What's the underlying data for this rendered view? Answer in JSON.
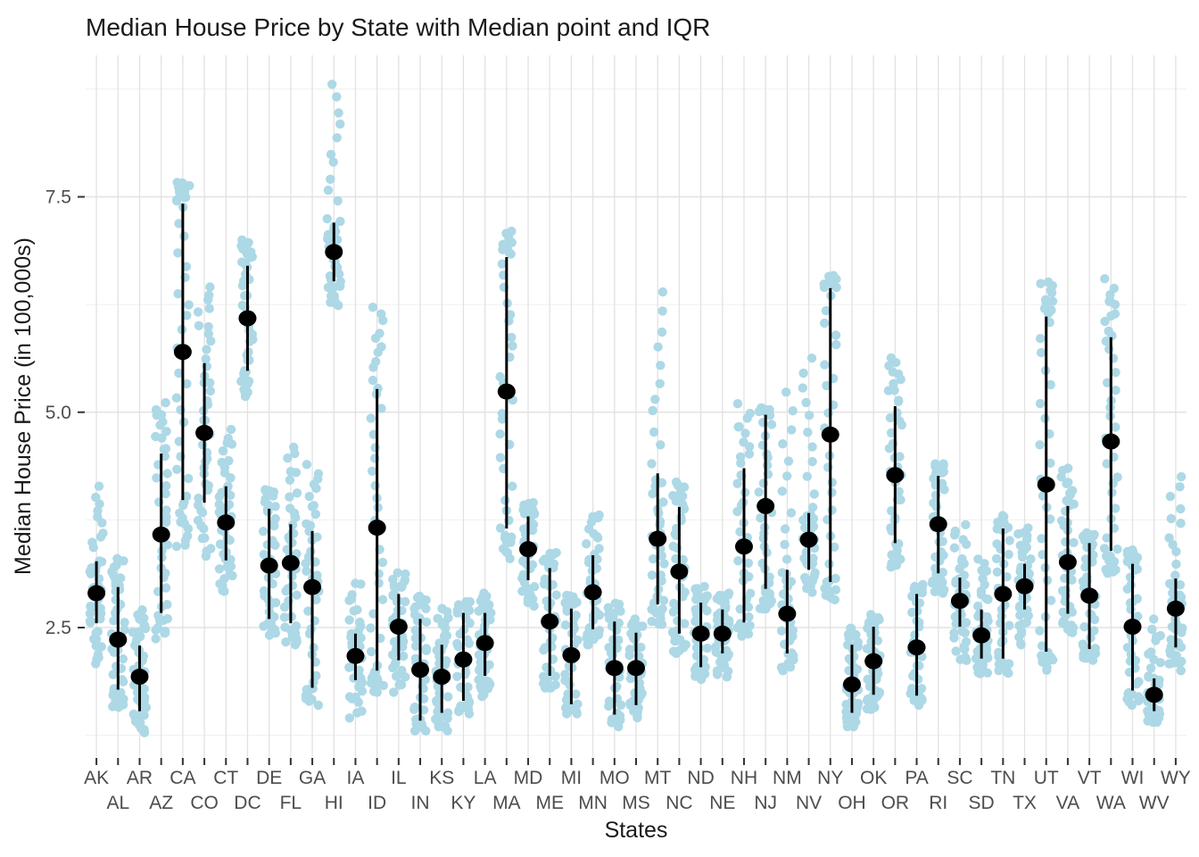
{
  "figure": {
    "title": "Median House Price by State with Median point and IQR",
    "x_label": "States",
    "y_label": "Median House Price (in 100,000s)"
  },
  "colors": {
    "point_fill": "#ADD8E6",
    "median_fill": "#000000",
    "iqr_stroke": "#000000",
    "grid_major": "#E2E2E2",
    "grid_minor": "#EFEFEF",
    "axis_tick": "#333333",
    "tick_label": "#4D4D4D",
    "title_text": "#1A1A1A",
    "background": "#FFFFFF"
  },
  "chart_data": {
    "type": "scatter",
    "subtype": "jittered points with median point and IQR bar per category",
    "title": "Median House Price by State with Median point and IQR",
    "xlabel": "States",
    "ylabel": "Median House Price (in 100,000s)",
    "legend": "none",
    "grid": "on",
    "ylim": [
      1.0,
      9.15
    ],
    "ytick_labels": [
      "2.5",
      "5.0",
      "7.5"
    ],
    "ytick_values": [
      2.5,
      5.0,
      7.5
    ],
    "minor_ytick_values": [
      1.25,
      3.75,
      6.25,
      8.75
    ],
    "x_categories": [
      "AK",
      "AL",
      "AR",
      "AZ",
      "CA",
      "CO",
      "CT",
      "DC",
      "DE",
      "FL",
      "GA",
      "HI",
      "IA",
      "ID",
      "IL",
      "IN",
      "KS",
      "KY",
      "LA",
      "MA",
      "MD",
      "ME",
      "MI",
      "MN",
      "MO",
      "MS",
      "MT",
      "NC",
      "ND",
      "NE",
      "NH",
      "NJ",
      "NM",
      "NV",
      "NY",
      "OH",
      "OK",
      "OR",
      "PA",
      "RI",
      "SC",
      "SD",
      "TN",
      "TX",
      "UT",
      "VA",
      "VT",
      "WA",
      "WI",
      "WV",
      "WY"
    ],
    "series": [
      {
        "state": "AK",
        "median": 2.9,
        "q1": 2.55,
        "q3": 3.27,
        "low": 2.05,
        "high": 4.15
      },
      {
        "state": "AL",
        "median": 2.36,
        "q1": 1.78,
        "q3": 2.97,
        "low": 1.55,
        "high": 3.3
      },
      {
        "state": "AR",
        "median": 1.93,
        "q1": 1.53,
        "q3": 2.29,
        "low": 1.28,
        "high": 2.75
      },
      {
        "state": "AZ",
        "median": 3.58,
        "q1": 2.67,
        "q3": 4.52,
        "low": 2.35,
        "high": 5.15
      },
      {
        "state": "CA",
        "median": 5.7,
        "q1": 3.98,
        "q3": 7.42,
        "low": 3.4,
        "high": 7.7
      },
      {
        "state": "CO",
        "median": 4.76,
        "q1": 3.95,
        "q3": 5.57,
        "low": 3.3,
        "high": 6.5
      },
      {
        "state": "CT",
        "median": 3.72,
        "q1": 3.28,
        "q3": 4.14,
        "low": 2.9,
        "high": 4.8
      },
      {
        "state": "DC",
        "median": 6.09,
        "q1": 5.48,
        "q3": 6.7,
        "low": 5.15,
        "high": 7.0
      },
      {
        "state": "DE",
        "median": 3.22,
        "q1": 2.6,
        "q3": 3.88,
        "low": 2.4,
        "high": 4.1
      },
      {
        "state": "FL",
        "median": 3.25,
        "q1": 2.55,
        "q3": 3.7,
        "low": 2.3,
        "high": 4.65
      },
      {
        "state": "GA",
        "median": 2.97,
        "q1": 1.8,
        "q3": 3.62,
        "low": 1.6,
        "high": 4.4
      },
      {
        "state": "HI",
        "median": 6.86,
        "q1": 6.52,
        "q3": 7.2,
        "low": 6.2,
        "high": 8.85
      },
      {
        "state": "IA",
        "median": 2.17,
        "q1": 1.89,
        "q3": 2.43,
        "low": 1.45,
        "high": 3.05
      },
      {
        "state": "ID",
        "median": 3.66,
        "q1": 2.0,
        "q3": 5.27,
        "low": 1.75,
        "high": 6.25
      },
      {
        "state": "IL",
        "median": 2.51,
        "q1": 2.12,
        "q3": 2.89,
        "low": 1.75,
        "high": 3.15
      },
      {
        "state": "IN",
        "median": 2.01,
        "q1": 1.42,
        "q3": 2.6,
        "low": 1.3,
        "high": 2.9
      },
      {
        "state": "KS",
        "median": 1.93,
        "q1": 1.51,
        "q3": 2.3,
        "low": 1.3,
        "high": 2.75
      },
      {
        "state": "KY",
        "median": 2.13,
        "q1": 1.65,
        "q3": 2.67,
        "low": 1.5,
        "high": 2.8
      },
      {
        "state": "LA",
        "median": 2.32,
        "q1": 1.94,
        "q3": 2.67,
        "low": 1.7,
        "high": 2.9
      },
      {
        "state": "MA",
        "median": 5.24,
        "q1": 3.65,
        "q3": 6.8,
        "low": 3.3,
        "high": 7.1
      },
      {
        "state": "MD",
        "median": 3.41,
        "q1": 3.05,
        "q3": 3.79,
        "low": 2.75,
        "high": 3.95
      },
      {
        "state": "ME",
        "median": 2.57,
        "q1": 1.94,
        "q3": 3.19,
        "low": 1.8,
        "high": 3.4
      },
      {
        "state": "MI",
        "median": 2.18,
        "q1": 1.61,
        "q3": 2.72,
        "low": 1.5,
        "high": 2.9
      },
      {
        "state": "MN",
        "median": 2.91,
        "q1": 2.48,
        "q3": 3.34,
        "low": 2.3,
        "high": 3.85
      },
      {
        "state": "MO",
        "median": 2.03,
        "q1": 1.49,
        "q3": 2.57,
        "low": 1.35,
        "high": 2.8
      },
      {
        "state": "MS",
        "median": 2.03,
        "q1": 1.6,
        "q3": 2.44,
        "low": 1.45,
        "high": 2.6
      },
      {
        "state": "MT",
        "median": 3.53,
        "q1": 2.77,
        "q3": 4.29,
        "low": 2.5,
        "high": 6.45
      },
      {
        "state": "NC",
        "median": 3.15,
        "q1": 2.43,
        "q3": 3.9,
        "low": 2.2,
        "high": 4.2
      },
      {
        "state": "ND",
        "median": 2.43,
        "q1": 2.04,
        "q3": 2.79,
        "low": 1.9,
        "high": 3.0
      },
      {
        "state": "NE",
        "median": 2.43,
        "q1": 2.2,
        "q3": 2.71,
        "low": 1.9,
        "high": 2.9
      },
      {
        "state": "NH",
        "median": 3.44,
        "q1": 2.56,
        "q3": 4.35,
        "low": 2.4,
        "high": 5.1
      },
      {
        "state": "NJ",
        "median": 3.91,
        "q1": 2.95,
        "q3": 4.97,
        "low": 2.7,
        "high": 5.05
      },
      {
        "state": "NM",
        "median": 2.66,
        "q1": 2.2,
        "q3": 3.17,
        "low": 2.0,
        "high": 5.3
      },
      {
        "state": "NV",
        "median": 3.52,
        "q1": 3.17,
        "q3": 3.83,
        "low": 2.9,
        "high": 5.75
      },
      {
        "state": "NY",
        "median": 4.74,
        "q1": 3.03,
        "q3": 6.44,
        "low": 2.8,
        "high": 6.6
      },
      {
        "state": "OH",
        "median": 1.84,
        "q1": 1.51,
        "q3": 2.3,
        "low": 1.35,
        "high": 2.5
      },
      {
        "state": "OK",
        "median": 2.11,
        "q1": 1.72,
        "q3": 2.51,
        "low": 1.55,
        "high": 2.65
      },
      {
        "state": "OR",
        "median": 4.27,
        "q1": 3.48,
        "q3": 5.07,
        "low": 3.2,
        "high": 5.7
      },
      {
        "state": "PA",
        "median": 2.27,
        "q1": 1.71,
        "q3": 2.89,
        "low": 1.6,
        "high": 3.0
      },
      {
        "state": "RI",
        "median": 3.7,
        "q1": 3.13,
        "q3": 4.26,
        "low": 2.9,
        "high": 4.4
      },
      {
        "state": "SC",
        "median": 2.81,
        "q1": 2.51,
        "q3": 3.08,
        "low": 2.1,
        "high": 3.7
      },
      {
        "state": "SD",
        "median": 2.41,
        "q1": 2.14,
        "q3": 2.71,
        "low": 1.95,
        "high": 3.3
      },
      {
        "state": "TN",
        "median": 2.89,
        "q1": 2.14,
        "q3": 3.65,
        "low": 1.95,
        "high": 3.8
      },
      {
        "state": "TX",
        "median": 2.98,
        "q1": 2.71,
        "q3": 3.24,
        "low": 2.3,
        "high": 3.7
      },
      {
        "state": "UT",
        "median": 4.16,
        "q1": 2.22,
        "q3": 6.11,
        "low": 2.0,
        "high": 6.55
      },
      {
        "state": "VA",
        "median": 3.26,
        "q1": 2.66,
        "q3": 3.91,
        "low": 2.4,
        "high": 4.35
      },
      {
        "state": "VT",
        "median": 2.87,
        "q1": 2.25,
        "q3": 3.48,
        "low": 2.1,
        "high": 3.6
      },
      {
        "state": "WA",
        "median": 4.66,
        "q1": 3.39,
        "q3": 5.87,
        "low": 3.1,
        "high": 6.55
      },
      {
        "state": "WI",
        "median": 2.51,
        "q1": 1.77,
        "q3": 3.24,
        "low": 1.6,
        "high": 3.4
      },
      {
        "state": "WV",
        "median": 1.72,
        "q1": 1.53,
        "q3": 1.91,
        "low": 1.4,
        "high": 2.6
      },
      {
        "state": "WY",
        "median": 2.72,
        "q1": 2.27,
        "q3": 3.07,
        "low": 2.0,
        "high": 4.3
      }
    ]
  }
}
